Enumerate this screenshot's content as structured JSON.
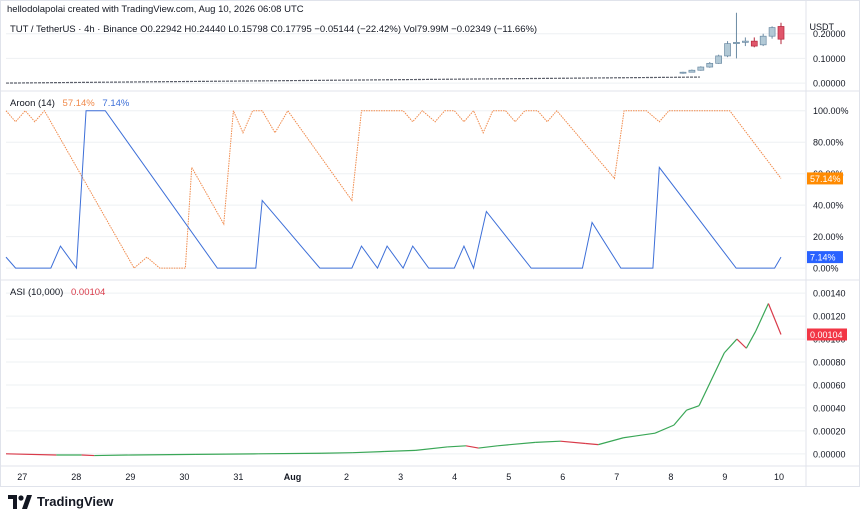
{
  "header": {
    "attribution": "hellodolapolai created with TradingView.com, Aug 10, 2026 06:08 UTC",
    "symbol_line": "TUT / TetherUS · 4h · Binance   O0.22942  H0.24440  L0.15798  C0.17795  −0.05144 (−22.42%)  Vol79.99M  −0.02349 (−11.66%)"
  },
  "price_unit": "USDT",
  "aroon_legend": {
    "label": "Aroon (14)",
    "up_value": "57.14%",
    "down_value": "7.14%"
  },
  "asi_legend": {
    "label": "ASI (10,000)",
    "value": "0.00104"
  },
  "colors": {
    "up_candle": "#b2c9d6",
    "down_candle": "#e0566b",
    "aroon_up": "#f08a4b",
    "aroon_down": "#3d6fd8",
    "asi_up": "#3aa757",
    "asi_down": "#d93b4a",
    "grid": "#eef0f3",
    "badge_red": "#f23645",
    "badge_blue": "#2962ff",
    "badge_orange": "#ff8a00"
  },
  "brand": {
    "name": "TradingView",
    "icon": "tradingview-logo-icon"
  },
  "chart_data": [
    {
      "type": "candlestick",
      "title": "TUT / TetherUS · 4h · Binance",
      "ylim": [
        -0.02,
        0.28
      ],
      "y_ticks": [
        "0.20000",
        "0.10000",
        "0.00000"
      ],
      "y_tick_values": [
        0.2,
        0.1,
        0.0
      ],
      "last_price": 0.17795,
      "candles": [
        {
          "x": "Aug 8 16:00",
          "o": 0.04,
          "h": 0.046,
          "l": 0.038,
          "c": 0.044
        },
        {
          "x": "Aug 8 20:00",
          "o": 0.044,
          "h": 0.055,
          "l": 0.043,
          "c": 0.052
        },
        {
          "x": "Aug 9 00:00",
          "o": 0.052,
          "h": 0.068,
          "l": 0.05,
          "c": 0.065
        },
        {
          "x": "Aug 9 04:00",
          "o": 0.065,
          "h": 0.085,
          "l": 0.062,
          "c": 0.08
        },
        {
          "x": "Aug 9 08:00",
          "o": 0.08,
          "h": 0.115,
          "l": 0.078,
          "c": 0.11
        },
        {
          "x": "Aug 9 12:00",
          "o": 0.11,
          "h": 0.17,
          "l": 0.105,
          "c": 0.16
        },
        {
          "x": "Aug 9 16:00",
          "o": 0.16,
          "h": 0.285,
          "l": 0.1,
          "c": 0.165
        },
        {
          "x": "Aug 9 20:00",
          "o": 0.165,
          "h": 0.185,
          "l": 0.15,
          "c": 0.17
        },
        {
          "x": "Aug 10 00:00",
          "o": 0.17,
          "h": 0.185,
          "l": 0.145,
          "c": 0.15
        },
        {
          "x": "Aug 10 04:00",
          "o": 0.155,
          "h": 0.2,
          "l": 0.15,
          "c": 0.19
        },
        {
          "x": "Aug 10 08:00",
          "o": 0.19,
          "h": 0.23,
          "l": 0.18,
          "c": 0.225
        },
        {
          "x": "Aug 10 12:00",
          "o": 0.22942,
          "h": 0.2444,
          "l": 0.15798,
          "c": 0.17795
        }
      ]
    },
    {
      "type": "line",
      "title": "Aroon (14)",
      "ylim": [
        -5,
        110
      ],
      "y_ticks": [
        "100.00%",
        "80.00%",
        "60.00%",
        "40.00%",
        "20.00%",
        "0.00%"
      ],
      "y_tick_values": [
        100,
        80,
        60,
        40,
        20,
        0
      ],
      "series": [
        {
          "name": "Aroon Up",
          "value_label": "57.14%",
          "points": [
            [
              0,
              100
            ],
            [
              1.5,
              93
            ],
            [
              3,
              100
            ],
            [
              4.5,
              93
            ],
            [
              6,
              100
            ],
            [
              20,
              0
            ],
            [
              22,
              7
            ],
            [
              24,
              0
            ],
            [
              28,
              0
            ],
            [
              29,
              64
            ],
            [
              34,
              28
            ],
            [
              35.5,
              100
            ],
            [
              37,
              86
            ],
            [
              38.5,
              100
            ],
            [
              40,
              100
            ],
            [
              42,
              86
            ],
            [
              44,
              100
            ],
            [
              54,
              43
            ],
            [
              55.5,
              100
            ],
            [
              62,
              100
            ],
            [
              63.5,
              93
            ],
            [
              65,
              100
            ],
            [
              67,
              93
            ],
            [
              68.5,
              100
            ],
            [
              70,
              100
            ],
            [
              71.5,
              93
            ],
            [
              73,
              100
            ],
            [
              74.5,
              86
            ],
            [
              76,
              100
            ],
            [
              78,
              100
            ],
            [
              79.5,
              93
            ],
            [
              81,
              100
            ],
            [
              83,
              100
            ],
            [
              84.5,
              93
            ],
            [
              86,
              100
            ],
            [
              95,
              57
            ],
            [
              96.5,
              100
            ],
            [
              100,
              100
            ],
            [
              102,
              93
            ],
            [
              103.5,
              100
            ],
            [
              113,
              100
            ],
            [
              121,
              57
            ]
          ]
        },
        {
          "name": "Aroon Down",
          "value_label": "7.14%",
          "points": [
            [
              0,
              7
            ],
            [
              1.5,
              0
            ],
            [
              7,
              0
            ],
            [
              8.5,
              14
            ],
            [
              11,
              0
            ],
            [
              12.5,
              100
            ],
            [
              15.5,
              100
            ],
            [
              33,
              0
            ],
            [
              39,
              0
            ],
            [
              40,
              43
            ],
            [
              49,
              0
            ],
            [
              54,
              0
            ],
            [
              55.5,
              14
            ],
            [
              58,
              0
            ],
            [
              59.5,
              14
            ],
            [
              62,
              0
            ],
            [
              63.5,
              14
            ],
            [
              66,
              0
            ],
            [
              70,
              0
            ],
            [
              71.5,
              14
            ],
            [
              73,
              0
            ],
            [
              75,
              36
            ],
            [
              82,
              0
            ],
            [
              90,
              0
            ],
            [
              91.5,
              29
            ],
            [
              96,
              0
            ],
            [
              101,
              0
            ],
            [
              102,
              64
            ],
            [
              114,
              0
            ],
            [
              120,
              0
            ],
            [
              121,
              7
            ]
          ]
        }
      ]
    },
    {
      "type": "line",
      "title": "ASI (10,000)",
      "ylim": [
        -8e-05,
        0.00148
      ],
      "y_ticks": [
        "0.00140",
        "0.00120",
        "0.00100",
        "0.00080",
        "0.00060",
        "0.00040",
        "0.00020",
        "0.00000"
      ],
      "y_tick_values": [
        0.0014,
        0.0012,
        0.001,
        0.0008,
        0.0006,
        0.0004,
        0.0002,
        0.0
      ],
      "last_value": 0.00104,
      "points": [
        [
          0,
          0.0
        ],
        [
          8,
          -1e-05
        ],
        [
          12,
          -1e-05
        ],
        [
          14,
          -1.5e-05
        ],
        [
          20,
          -1e-05
        ],
        [
          30,
          -5e-06
        ],
        [
          40,
          0.0
        ],
        [
          50,
          5e-06
        ],
        [
          55,
          1e-05
        ],
        [
          60,
          2e-05
        ],
        [
          65,
          3e-05
        ],
        [
          70,
          6e-05
        ],
        [
          73,
          7e-05
        ],
        [
          75,
          5e-05
        ],
        [
          78,
          7e-05
        ],
        [
          84,
          0.0001
        ],
        [
          88,
          0.00011
        ],
        [
          92,
          9e-05
        ],
        [
          94,
          8e-05
        ],
        [
          98,
          0.00014
        ],
        [
          103,
          0.00018
        ],
        [
          106,
          0.00025
        ],
        [
          108,
          0.00038
        ],
        [
          110,
          0.00042
        ],
        [
          114,
          0.00088
        ],
        [
          116,
          0.001
        ],
        [
          117.5,
          0.00092
        ],
        [
          119,
          0.00107
        ],
        [
          121,
          0.00131
        ],
        [
          123,
          0.00104
        ]
      ]
    }
  ],
  "x_axis": {
    "labels": [
      {
        "text": "27",
        "at": 3
      },
      {
        "text": "28",
        "at": 13
      },
      {
        "text": "29",
        "at": 23
      },
      {
        "text": "30",
        "at": 33
      },
      {
        "text": "31",
        "at": 43
      },
      {
        "text": "Aug",
        "at": 53
      },
      {
        "text": "2",
        "at": 63
      },
      {
        "text": "3",
        "at": 73
      },
      {
        "text": "4",
        "at": 83
      },
      {
        "text": "5",
        "at": 93
      },
      {
        "text": "6",
        "at": 103
      },
      {
        "text": "7",
        "at": 113
      },
      {
        "text": "8",
        "at": 123
      },
      {
        "text": "9",
        "at": 133
      },
      {
        "text": "10",
        "at": 143
      }
    ]
  }
}
